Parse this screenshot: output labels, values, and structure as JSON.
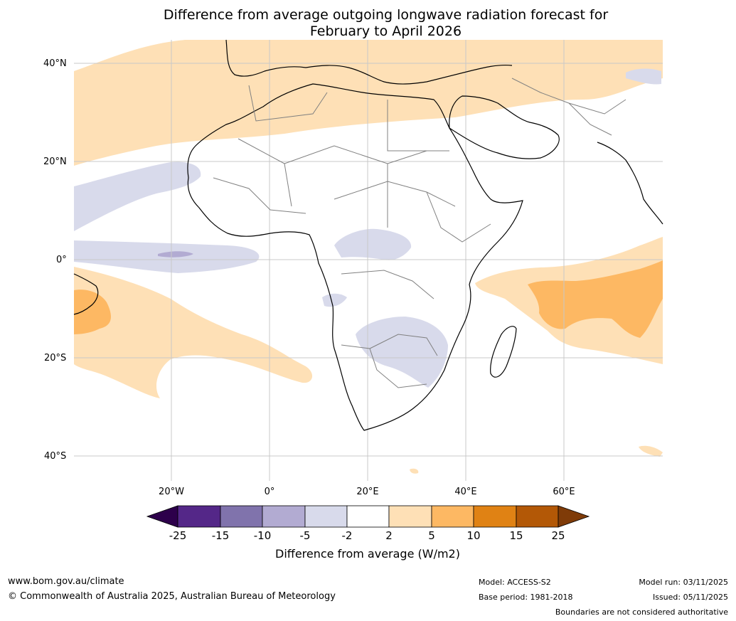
{
  "title_line1": "Difference from average outgoing longwave radiation forecast for",
  "title_line2": "February to April 2026",
  "lat_labels": [
    "40°N",
    "20°N",
    "0°",
    "20°S",
    "40°S"
  ],
  "lon_labels": [
    "20°W",
    "0°",
    "20°E",
    "40°E",
    "60°E"
  ],
  "colorbar": {
    "ticks": [
      "-25",
      "-15",
      "-10",
      "-5",
      "-2",
      "2",
      "5",
      "10",
      "15",
      "25"
    ],
    "label": "Difference from average (W/m2)",
    "colors": [
      "#2d004b",
      "#542788",
      "#8073ac",
      "#b2abd2",
      "#d8daeb",
      "#ffffff",
      "#fee0b6",
      "#fdb863",
      "#e08214",
      "#b35806",
      "#7f3b08"
    ]
  },
  "footer": {
    "website": "www.bom.gov.au/climate",
    "copyright": "© Commonwealth of Australia 2025, Australian Bureau of Meteorology",
    "model": "Model: ACCESS-S2",
    "base_period": "Base period: 1981-2018",
    "model_run": "Model run: 03/11/2025",
    "issued": "Issued: 05/11/2025",
    "disclaimer": "Boundaries are not considered authoritative"
  }
}
